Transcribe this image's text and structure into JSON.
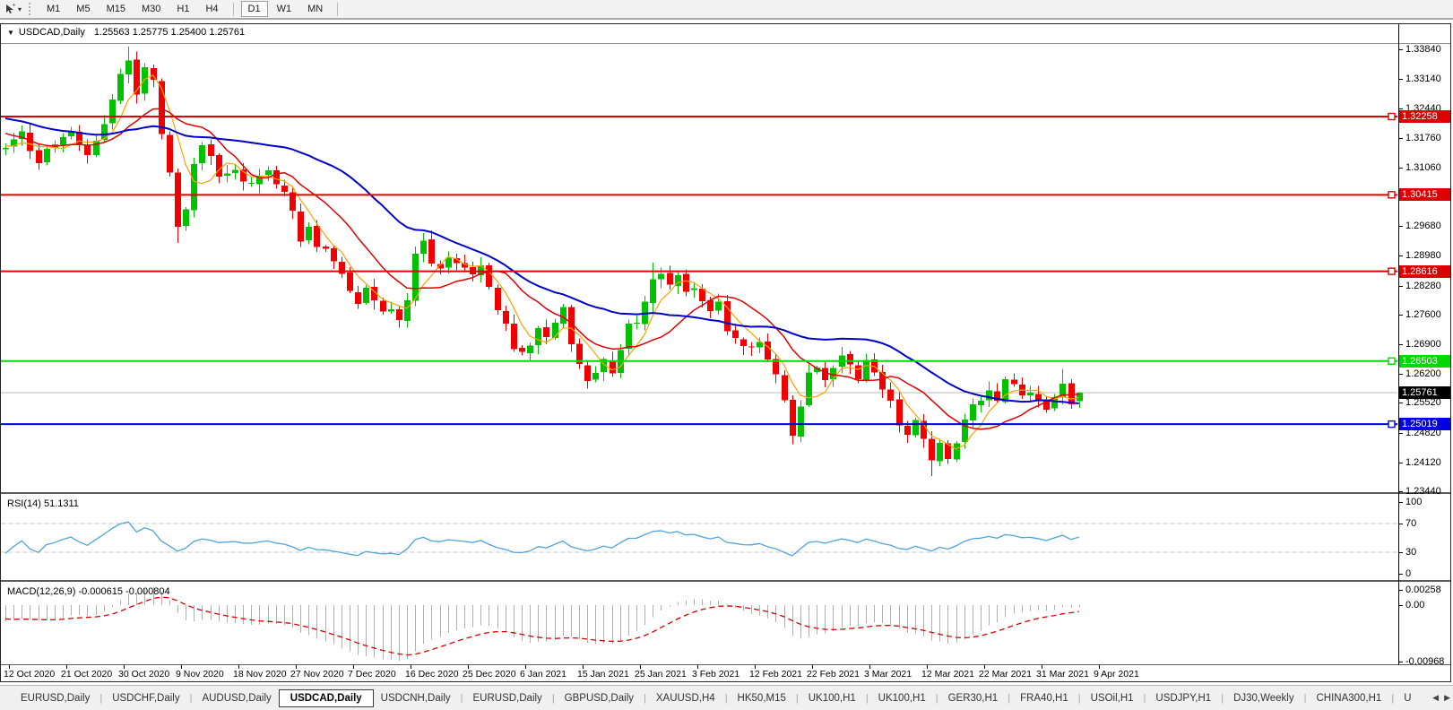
{
  "toolbar": {
    "cursor_tool_icon": "cursor-crosshair-tool",
    "timeframes": [
      "M1",
      "M5",
      "M15",
      "M30",
      "H1",
      "H4",
      "D1",
      "W1",
      "MN"
    ],
    "active_timeframe": "D1"
  },
  "window": {
    "symbol_title": "USDCAD,Daily",
    "ohlc_text": "1.25563 1.25775 1.25400 1.25761"
  },
  "chart_data": {
    "type": "candlestick",
    "symbol": "USDCAD",
    "timeframe": "Daily",
    "ohlc": {
      "open": 1.25563,
      "high": 1.25775,
      "low": 1.254,
      "close": 1.25761
    },
    "current_price": {
      "label": "1.25761",
      "value": 1.25761
    },
    "y_axis_ticks": [
      "1.33840",
      "1.33140",
      "1.32440",
      "1.31760",
      "1.31060",
      "1.29680",
      "1.28980",
      "1.28280",
      "1.27600",
      "1.26900",
      "1.26200",
      "1.25520",
      "1.24820",
      "1.24120",
      "1.23440"
    ],
    "x_axis_dates": [
      "12 Oct 2020",
      "21 Oct 2020",
      "30 Oct 2020",
      "9 Nov 2020",
      "18 Nov 2020",
      "27 Nov 2020",
      "7 Dec 2020",
      "16 Dec 2020",
      "25 Dec 2020",
      "6 Jan 2021",
      "15 Jan 2021",
      "25 Jan 2021",
      "3 Feb 2021",
      "12 Feb 2021",
      "22 Feb 2021",
      "3 Mar 2021",
      "12 Mar 2021",
      "22 Mar 2021",
      "31 Mar 2021",
      "9 Apr 2021"
    ],
    "horizontal_levels": [
      {
        "label": "1.32258",
        "value": 1.32258,
        "color": "#dd0000"
      },
      {
        "label": "1.30415",
        "value": 1.30415,
        "color": "#dd0000"
      },
      {
        "label": "1.28616",
        "value": 1.28616,
        "color": "#dd0000"
      },
      {
        "label": "1.26503",
        "value": 1.26503,
        "color": "#00d800"
      },
      {
        "label": "1.25019",
        "value": 1.25019,
        "color": "#0000e0"
      }
    ],
    "pre_anchors": [
      [
        -60,
        1.3255
      ],
      [
        -50,
        1.3375
      ],
      [
        -42,
        1.332
      ],
      [
        -34,
        1.3245
      ],
      [
        -26,
        1.3305
      ],
      [
        -18,
        1.3195
      ],
      [
        -10,
        1.3245
      ],
      [
        -5,
        1.3165
      ],
      [
        -1,
        1.315
      ]
    ],
    "price_anchors": [
      [
        0,
        1.3145
      ],
      [
        2,
        1.3185
      ],
      [
        4,
        1.312
      ],
      [
        6,
        1.3165
      ],
      [
        8,
        1.319
      ],
      [
        10,
        1.314
      ],
      [
        12,
        1.321
      ],
      [
        14,
        1.333
      ],
      [
        15,
        1.336
      ],
      [
        16,
        1.327
      ],
      [
        17,
        1.3345
      ],
      [
        18,
        1.3305
      ],
      [
        19,
        1.3185
      ],
      [
        20,
        1.31
      ],
      [
        21,
        1.2965
      ],
      [
        22,
        1.3015
      ],
      [
        23,
        1.312
      ],
      [
        24,
        1.316
      ],
      [
        25,
        1.313
      ],
      [
        26,
        1.3085
      ],
      [
        28,
        1.3095
      ],
      [
        30,
        1.3065
      ],
      [
        32,
        1.31
      ],
      [
        34,
        1.3045
      ],
      [
        35,
        1.3008
      ],
      [
        36,
        1.2932
      ],
      [
        37,
        1.2968
      ],
      [
        38,
        1.2922
      ],
      [
        40,
        1.2892
      ],
      [
        42,
        1.2812
      ],
      [
        43,
        1.2782
      ],
      [
        44,
        1.2818
      ],
      [
        45,
        1.2792
      ],
      [
        46,
        1.2762
      ],
      [
        47,
        1.2778
      ],
      [
        48,
        1.2742
      ],
      [
        49,
        1.279
      ],
      [
        50,
        1.29
      ],
      [
        51,
        1.293
      ],
      [
        52,
        1.288
      ],
      [
        53,
        1.2862
      ],
      [
        54,
        1.2885
      ],
      [
        56,
        1.2875
      ],
      [
        57,
        1.2858
      ],
      [
        58,
        1.2872
      ],
      [
        59,
        1.283
      ],
      [
        60,
        1.2772
      ],
      [
        61,
        1.2732
      ],
      [
        62,
        1.2682
      ],
      [
        63,
        1.2668
      ],
      [
        64,
        1.2692
      ],
      [
        65,
        1.2722
      ],
      [
        66,
        1.2702
      ],
      [
        67,
        1.2748
      ],
      [
        68,
        1.2772
      ],
      [
        69,
        1.2682
      ],
      [
        70,
        1.2638
      ],
      [
        71,
        1.2602
      ],
      [
        72,
        1.2628
      ],
      [
        73,
        1.2652
      ],
      [
        74,
        1.2622
      ],
      [
        75,
        1.2682
      ],
      [
        76,
        1.2732
      ],
      [
        77,
        1.2738
      ],
      [
        78,
        1.2782
      ],
      [
        79,
        1.2842
      ],
      [
        80,
        1.2858
      ],
      [
        81,
        1.2828
      ],
      [
        82,
        1.2852
      ],
      [
        83,
        1.2808
      ],
      [
        84,
        1.2822
      ],
      [
        85,
        1.2792
      ],
      [
        86,
        1.2772
      ],
      [
        87,
        1.2788
      ],
      [
        88,
        1.2718
      ],
      [
        89,
        1.2702
      ],
      [
        90,
        1.2692
      ],
      [
        91,
        1.2682
      ],
      [
        92,
        1.2692
      ],
      [
        93,
        1.2656
      ],
      [
        94,
        1.2626
      ],
      [
        95,
        1.2562
      ],
      [
        96,
        1.2482
      ],
      [
        97,
        1.2548
      ],
      [
        98,
        1.2622
      ],
      [
        99,
        1.2642
      ],
      [
        100,
        1.2612
      ],
      [
        101,
        1.2636
      ],
      [
        102,
        1.2662
      ],
      [
        103,
        1.2642
      ],
      [
        104,
        1.2612
      ],
      [
        105,
        1.2652
      ],
      [
        106,
        1.2622
      ],
      [
        107,
        1.2586
      ],
      [
        108,
        1.2552
      ],
      [
        109,
        1.2506
      ],
      [
        110,
        1.2472
      ],
      [
        111,
        1.2506
      ],
      [
        112,
        1.2466
      ],
      [
        113,
        1.2422
      ],
      [
        114,
        1.2456
      ],
      [
        115,
        1.2426
      ],
      [
        116,
        1.2462
      ],
      [
        117,
        1.2506
      ],
      [
        118,
        1.2542
      ],
      [
        119,
        1.2562
      ],
      [
        120,
        1.2586
      ],
      [
        121,
        1.2556
      ],
      [
        122,
        1.2606
      ],
      [
        123,
        1.2592
      ],
      [
        124,
        1.2562
      ],
      [
        125,
        1.2576
      ],
      [
        126,
        1.2556
      ],
      [
        127,
        1.2532
      ],
      [
        128,
        1.2562
      ],
      [
        129,
        1.2592
      ],
      [
        130,
        1.2546
      ],
      [
        131,
        1.25761
      ]
    ],
    "wick_low_overrides": [
      [
        21,
        1.2928
      ],
      [
        71,
        1.2586
      ],
      [
        96,
        1.2466
      ],
      [
        113,
        1.238
      ]
    ],
    "wick_high_overrides": [
      [
        15,
        1.339
      ],
      [
        51,
        1.2952
      ],
      [
        79,
        1.2882
      ],
      [
        129,
        1.2632
      ]
    ],
    "colors": {
      "candle_up": "#00c000",
      "candle_down": "#f00000",
      "ma_fast": "#ffa000",
      "ma_mid": "#e00000",
      "ma_slow": "#0000c8",
      "current_price_line": "#b8b8b8",
      "current_price_badge": "#000000",
      "rsi_line": "#4fa3dc",
      "rsi_dashed_level": "#c8c8c8",
      "macd_histogram": "#afafaf",
      "macd_signal": "#d40000"
    }
  },
  "rsi": {
    "label": "RSI(14) 51.1311",
    "period": 14,
    "value": 51.1311,
    "ticks": [
      "100",
      "70",
      "30",
      "0"
    ],
    "dashed_levels": [
      70,
      30
    ]
  },
  "macd": {
    "label": "MACD(12,26,9) -0.000615 -0.000804",
    "macd_value": -0.000615,
    "signal_value": -0.000804,
    "ticks": [
      {
        "label": "0.00258",
        "value": 0.00258
      },
      {
        "label": "0.00",
        "value": 0
      },
      {
        "label": "-0.00968",
        "value": -0.00968
      }
    ]
  },
  "tabs": {
    "items": [
      "EURUSD,Daily",
      "USDCHF,Daily",
      "AUDUSD,Daily",
      "USDCAD,Daily",
      "USDCNH,Daily",
      "EURUSD,Daily",
      "GBPUSD,Daily",
      "XAUUSD,H4",
      "HK50,M15",
      "UK100,H1",
      "UK100,H1",
      "GER30,H1",
      "FRA40,H1",
      "USOil,H1",
      "USDJPY,H1",
      "DJ30,Weekly",
      "CHINA300,H1",
      "U"
    ],
    "active_index": 3,
    "scroll_left_icon": "tabs-scroll-left",
    "scroll_right_icon": "tabs-scroll-right"
  }
}
